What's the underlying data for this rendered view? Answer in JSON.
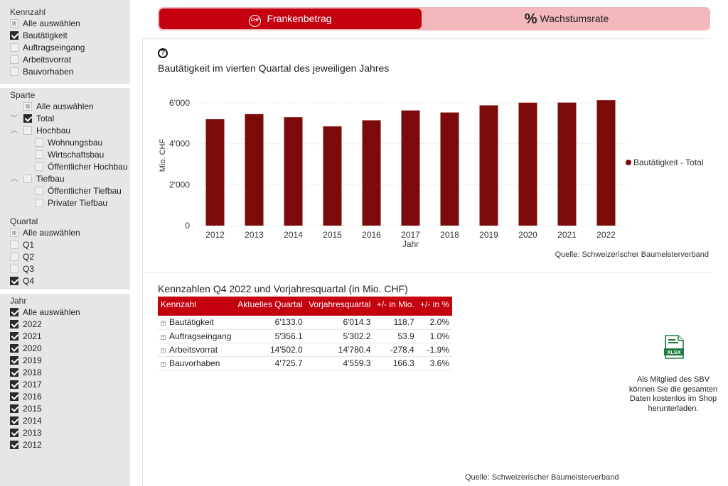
{
  "sidebar": {
    "kennzahl": {
      "title": "Kennzahl",
      "items": [
        {
          "label": "Alle auswählen",
          "state": "partial"
        },
        {
          "label": "Bautätigkeit",
          "state": "checked"
        },
        {
          "label": "Auftragseingang",
          "state": "unchecked"
        },
        {
          "label": "Arbeitsvorrat",
          "state": "unchecked"
        },
        {
          "label": "Bauvorhaben",
          "state": "unchecked"
        }
      ]
    },
    "sparte": {
      "title": "Sparte",
      "items": [
        {
          "label": "Alle auswählen",
          "state": "partial"
        },
        {
          "label": "Total",
          "state": "checked"
        },
        {
          "label": "Hochbau",
          "state": "unchecked"
        },
        {
          "label": "Wohnungsbau",
          "state": "unchecked"
        },
        {
          "label": "Wirtschaftsbau",
          "state": "unchecked"
        },
        {
          "label": "Öffentlicher Hochbau",
          "state": "unchecked"
        },
        {
          "label": "Tiefbau",
          "state": "unchecked"
        },
        {
          "label": "Öffentlicher Tiefbau",
          "state": "unchecked"
        },
        {
          "label": "Privater Tiefbau",
          "state": "unchecked"
        }
      ]
    },
    "quartal": {
      "title": "Quartal",
      "items": [
        {
          "label": "Alle auswählen",
          "state": "partial"
        },
        {
          "label": "Q1",
          "state": "unchecked"
        },
        {
          "label": "Q2",
          "state": "unchecked"
        },
        {
          "label": "Q3",
          "state": "unchecked"
        },
        {
          "label": "Q4",
          "state": "checked"
        }
      ]
    },
    "jahr": {
      "title": "Jahr",
      "items": [
        {
          "label": "Alle auswählen",
          "state": "checked"
        },
        {
          "label": "2022",
          "state": "checked"
        },
        {
          "label": "2021",
          "state": "checked"
        },
        {
          "label": "2020",
          "state": "checked"
        },
        {
          "label": "2019",
          "state": "checked"
        },
        {
          "label": "2018",
          "state": "checked"
        },
        {
          "label": "2017",
          "state": "checked"
        },
        {
          "label": "2016",
          "state": "checked"
        },
        {
          "label": "2015",
          "state": "checked"
        },
        {
          "label": "2014",
          "state": "checked"
        },
        {
          "label": "2013",
          "state": "checked"
        },
        {
          "label": "2012",
          "state": "checked"
        }
      ]
    }
  },
  "toggle": {
    "franken_label": "Frankenbetrag",
    "franken_icon_text": "CHF",
    "wachstum_label": "Wachstumsrate",
    "wachstum_icon": "%"
  },
  "help_icon_text": "?",
  "chart_data": {
    "type": "bar",
    "title": "Bautätigkeit im vierten Quartal des jeweiligen Jahres",
    "categories": [
      "2012",
      "2013",
      "2014",
      "2015",
      "2016",
      "2017",
      "2018",
      "2019",
      "2020",
      "2021",
      "2022"
    ],
    "series": [
      {
        "name": "Bautätigkeit - Total",
        "values": [
          5200,
          5450,
          5300,
          4850,
          5150,
          5630,
          5530,
          5880,
          6010,
          6014,
          6133
        ]
      }
    ],
    "xlabel": "Jahr",
    "ylabel": "Mio. CHF",
    "ylim": [
      0,
      6000
    ],
    "yticks": [
      0,
      2000,
      4000,
      6000
    ],
    "ytick_labels": [
      "0",
      "2'000",
      "4'000",
      "6'000"
    ],
    "grid": true,
    "legend": "right",
    "bar_color": "#7d0a0a"
  },
  "source_chart": "Quelle: Schweizerischer Baumeisterverband",
  "table": {
    "title": "Kennzahlen Q4 2022 und Vorjahresquartal (in Mio. CHF)",
    "headers": [
      "Kennzahl",
      "Aktuelles Quartal",
      "Vorjahresquartal",
      "+/- in Mio.",
      "+/- in %"
    ],
    "rows": [
      [
        "Bautätigkeit",
        "6'133.0",
        "6'014.3",
        "118.7",
        "2.0%"
      ],
      [
        "Auftragseingang",
        "5'356.1",
        "5'302.2",
        "53.9",
        "1.0%"
      ],
      [
        "Arbeitsvorrat",
        "14'502.0",
        "14'780.4",
        "-278.4",
        "-1.9%"
      ],
      [
        "Bauvorhaben",
        "4'725.7",
        "4'559.3",
        "166.3",
        "3.6%"
      ]
    ],
    "expand_glyph": "+"
  },
  "download": {
    "icon": "xlsx-icon",
    "icon_text": "XLSX",
    "text": "Als Mitglied des SBV können Sie die gesamten Daten kostenlos im Shop herunterladen."
  },
  "source_bottom": "Quelle: Schweizerischer Baumeisterverband",
  "colors": {
    "accent": "#c4000f",
    "accent_light": "#f2b8bc",
    "bar": "#7d0a0a",
    "sidebar_bg": "#e6e6e6"
  }
}
